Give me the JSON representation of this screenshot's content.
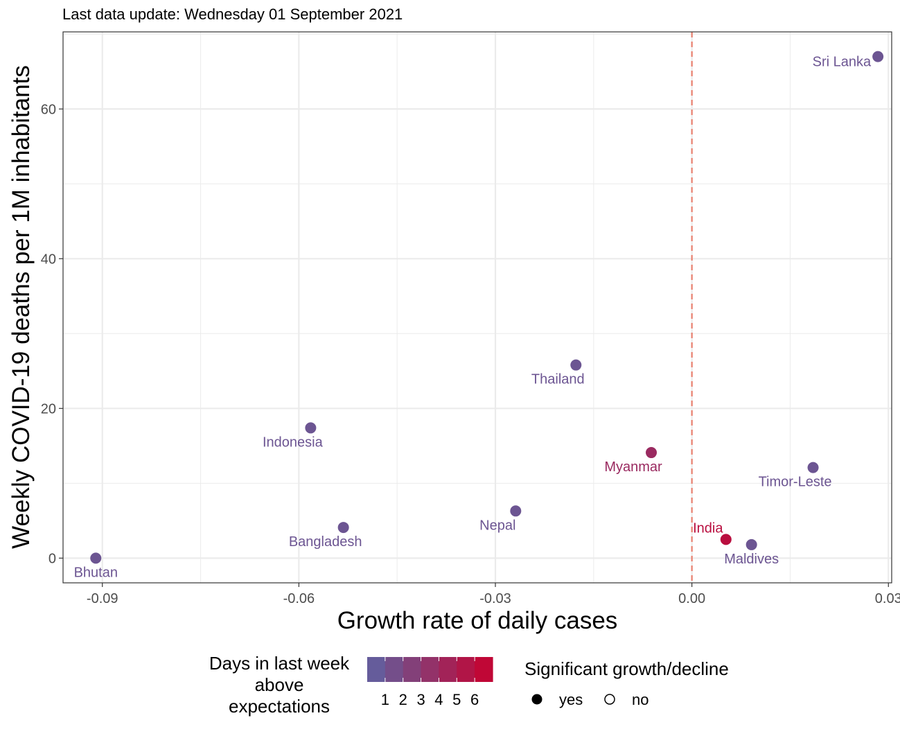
{
  "chart_data": {
    "type": "scatter",
    "subtitle": "Last data update: Wednesday 01 September 2021",
    "xlabel": "Growth rate of daily cases",
    "ylabel": "Weekly COVID-19 deaths per 1M inhabitants",
    "xlim": [
      -0.096,
      0.0305
    ],
    "ylim": [
      -3.3,
      70.3
    ],
    "x_ticks": [
      -0.09,
      -0.06,
      -0.03,
      0.0,
      0.03
    ],
    "x_tick_labels": [
      "-0.09",
      "-0.06",
      "-0.03",
      "0.00",
      "0.03"
    ],
    "y_ticks": [
      0,
      20,
      40,
      60
    ],
    "y_tick_labels": [
      "0",
      "20",
      "40",
      "60"
    ],
    "grid": true,
    "reference_line": {
      "x": 0.0,
      "style": "dashed",
      "color": "#E8806F"
    },
    "points": [
      {
        "label": "Bhutan",
        "x": -0.091,
        "y": 0.0,
        "days": 1,
        "significant": "yes",
        "label_pos": "below"
      },
      {
        "label": "Bangladesh",
        "x": -0.0532,
        "y": 4.1,
        "days": 1,
        "significant": "yes",
        "label_pos": "below-left"
      },
      {
        "label": "Indonesia",
        "x": -0.0582,
        "y": 17.4,
        "days": 1,
        "significant": "yes",
        "label_pos": "below-left"
      },
      {
        "label": "Nepal",
        "x": -0.0269,
        "y": 6.3,
        "days": 1,
        "significant": "yes",
        "label_pos": "below-left"
      },
      {
        "label": "Thailand",
        "x": -0.0177,
        "y": 25.8,
        "days": 1,
        "significant": "yes",
        "label_pos": "below-left"
      },
      {
        "label": "Myanmar",
        "x": -0.0062,
        "y": 14.1,
        "days": 4,
        "significant": "yes",
        "label_pos": "below-left"
      },
      {
        "label": "India",
        "x": 0.0052,
        "y": 2.5,
        "days": 6,
        "significant": "yes",
        "label_pos": "above-left"
      },
      {
        "label": "Maldives",
        "x": 0.0091,
        "y": 1.8,
        "days": 1,
        "significant": "yes",
        "label_pos": "below"
      },
      {
        "label": "Timor-Leste",
        "x": 0.0185,
        "y": 12.1,
        "days": 1,
        "significant": "yes",
        "label_pos": "below-left"
      },
      {
        "label": "Sri Lanka",
        "x": 0.0284,
        "y": 67.0,
        "days": 1,
        "significant": "yes",
        "label_pos": "left"
      }
    ],
    "color_scale": {
      "low": "#5D63A3",
      "high": "#C8002E",
      "domain": [
        0,
        7
      ]
    },
    "legends": {
      "color": {
        "title": [
          "Days in last week",
          "above",
          "expectations"
        ],
        "labels": [
          "1",
          "2",
          "3",
          "4",
          "5",
          "6"
        ]
      },
      "shape": {
        "title": "Significant growth/decline",
        "items": [
          {
            "label": "yes",
            "marker": "filled-circle"
          },
          {
            "label": "no",
            "marker": "open-circle"
          }
        ]
      },
      "placement": "bottom"
    }
  }
}
